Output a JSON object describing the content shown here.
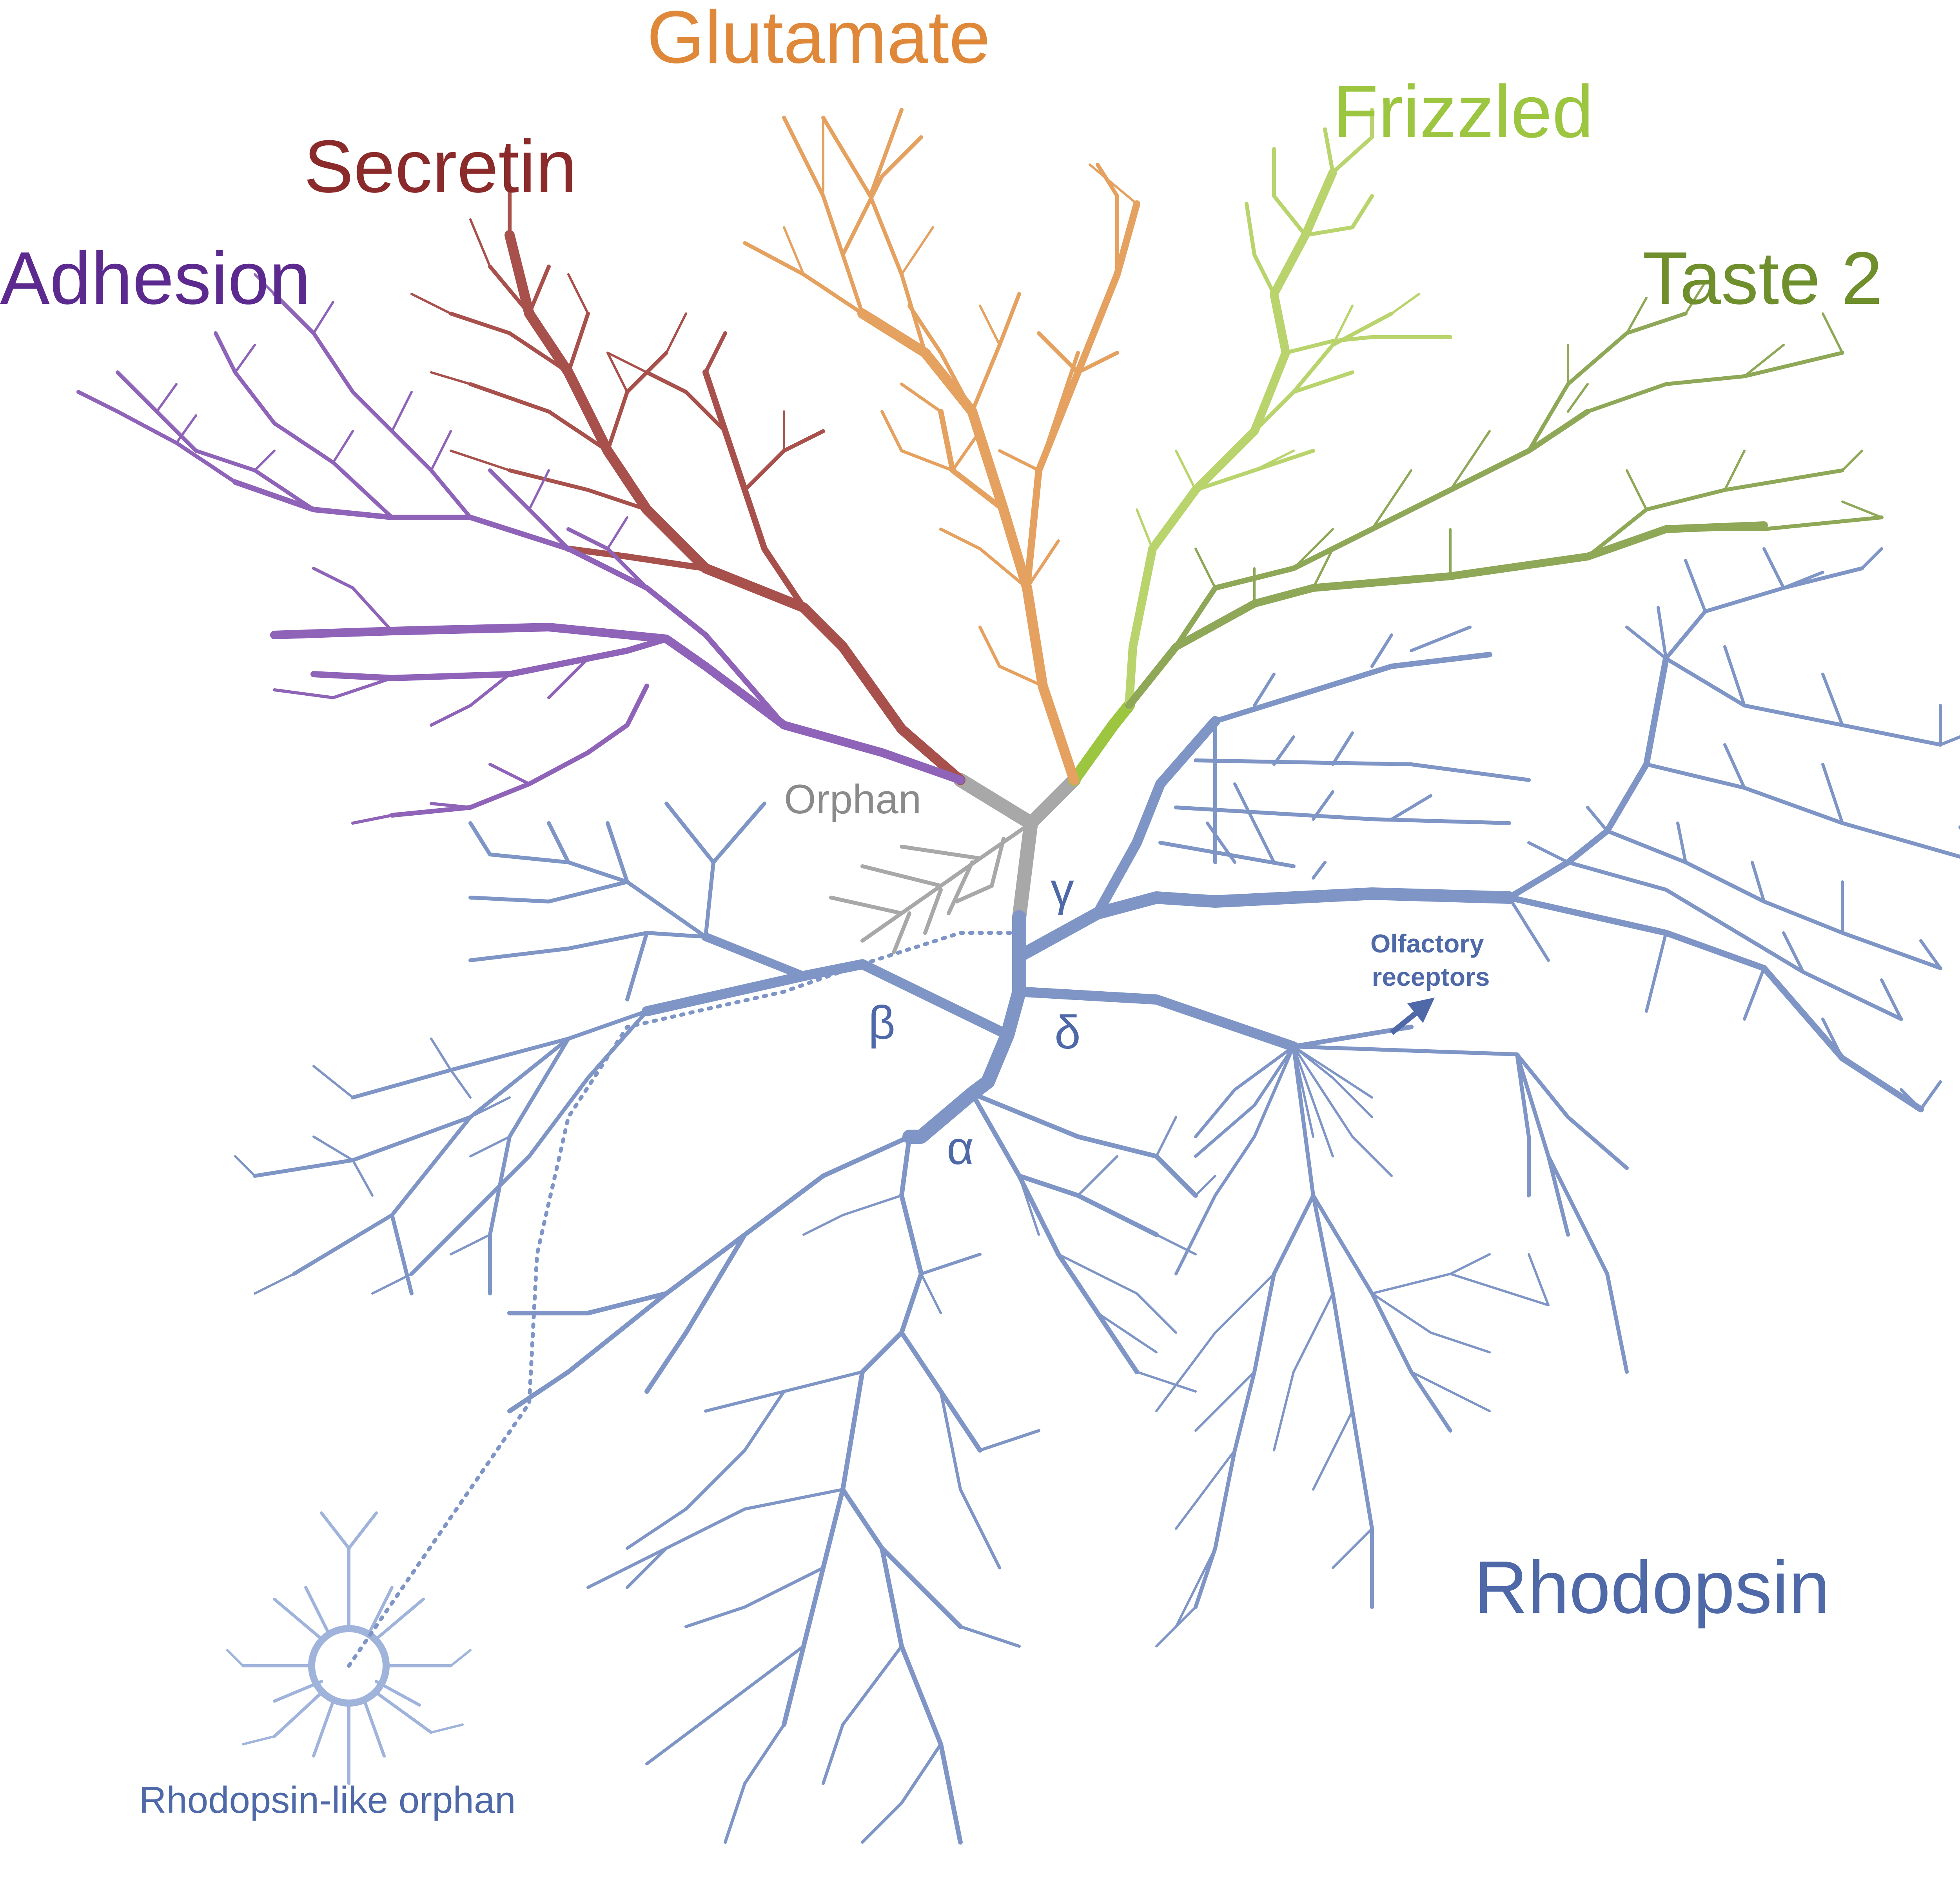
{
  "diagram": {
    "families": [
      {
        "key": "glutamate",
        "label": "Glutamate",
        "color": "#E0883A"
      },
      {
        "key": "frizzled",
        "label": "Frizzled",
        "color": "#9CC540"
      },
      {
        "key": "secretin",
        "label": "Secretin",
        "color": "#8B2A2A"
      },
      {
        "key": "taste2",
        "label": "Taste 2",
        "color": "#6F8E2C"
      },
      {
        "key": "adhesion",
        "label": "Adhesion",
        "color": "#5C2A8F"
      },
      {
        "key": "rhodopsin",
        "label": "Rhodopsin",
        "color": "#4E68A8"
      }
    ],
    "sub_labels": {
      "orphan": "Orphan",
      "gamma": "γ",
      "beta": "β",
      "delta": "δ",
      "alpha": "α",
      "olfactory": "Olfactory\nreceptors",
      "rhodopsin_like_orphan": "Rhodopsin-like orphan"
    },
    "colors": {
      "rhodopsin_branch": "#7E95C6",
      "rhodopsin_light": "#9FB3DB",
      "orphan_gray": "#A8A8A8",
      "glutamate_branch": "#E5A15F",
      "frizzled_branch": "#B9D46C",
      "secretin_branch": "#A8504C",
      "taste2_branch": "#8EA858",
      "adhesion_branch": "#8E63B8"
    }
  }
}
